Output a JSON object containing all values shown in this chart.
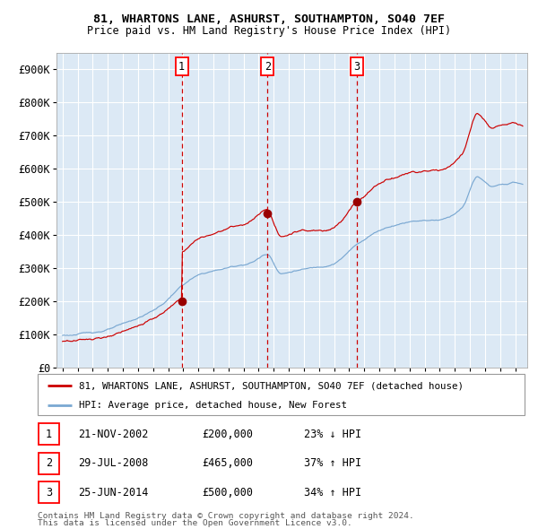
{
  "title1": "81, WHARTONS LANE, ASHURST, SOUTHAMPTON, SO40 7EF",
  "title2": "Price paid vs. HM Land Registry's House Price Index (HPI)",
  "plot_bg_color": "#dce9f5",
  "red_line_color": "#cc0000",
  "blue_line_color": "#7aa8d2",
  "marker_color": "#990000",
  "vline_color": "#cc0000",
  "grid_color": "#ffffff",
  "sale_events": [
    {
      "num": 1,
      "date_x": 2002.9,
      "price": 200000,
      "label": "21-NOV-2002",
      "amount": "£200,000",
      "pct": "23% ↓ HPI"
    },
    {
      "num": 2,
      "date_x": 2008.58,
      "price": 465000,
      "label": "29-JUL-2008",
      "amount": "£465,000",
      "pct": "37% ↑ HPI"
    },
    {
      "num": 3,
      "date_x": 2014.49,
      "price": 500000,
      "label": "25-JUN-2014",
      "amount": "£500,000",
      "pct": "34% ↑ HPI"
    }
  ],
  "legend_label_red": "81, WHARTONS LANE, ASHURST, SOUTHAMPTON, SO40 7EF (detached house)",
  "legend_label_blue": "HPI: Average price, detached house, New Forest",
  "footer1": "Contains HM Land Registry data © Crown copyright and database right 2024.",
  "footer2": "This data is licensed under the Open Government Licence v3.0.",
  "ylim": [
    0,
    950000
  ],
  "ytick_values": [
    0,
    100000,
    200000,
    300000,
    400000,
    500000,
    600000,
    700000,
    800000,
    900000
  ],
  "ytick_labels": [
    "£0",
    "£100K",
    "£200K",
    "£300K",
    "£400K",
    "£500K",
    "£600K",
    "£700K",
    "£800K",
    "£900K"
  ],
  "xmin": 1994.6,
  "xmax": 2025.8
}
